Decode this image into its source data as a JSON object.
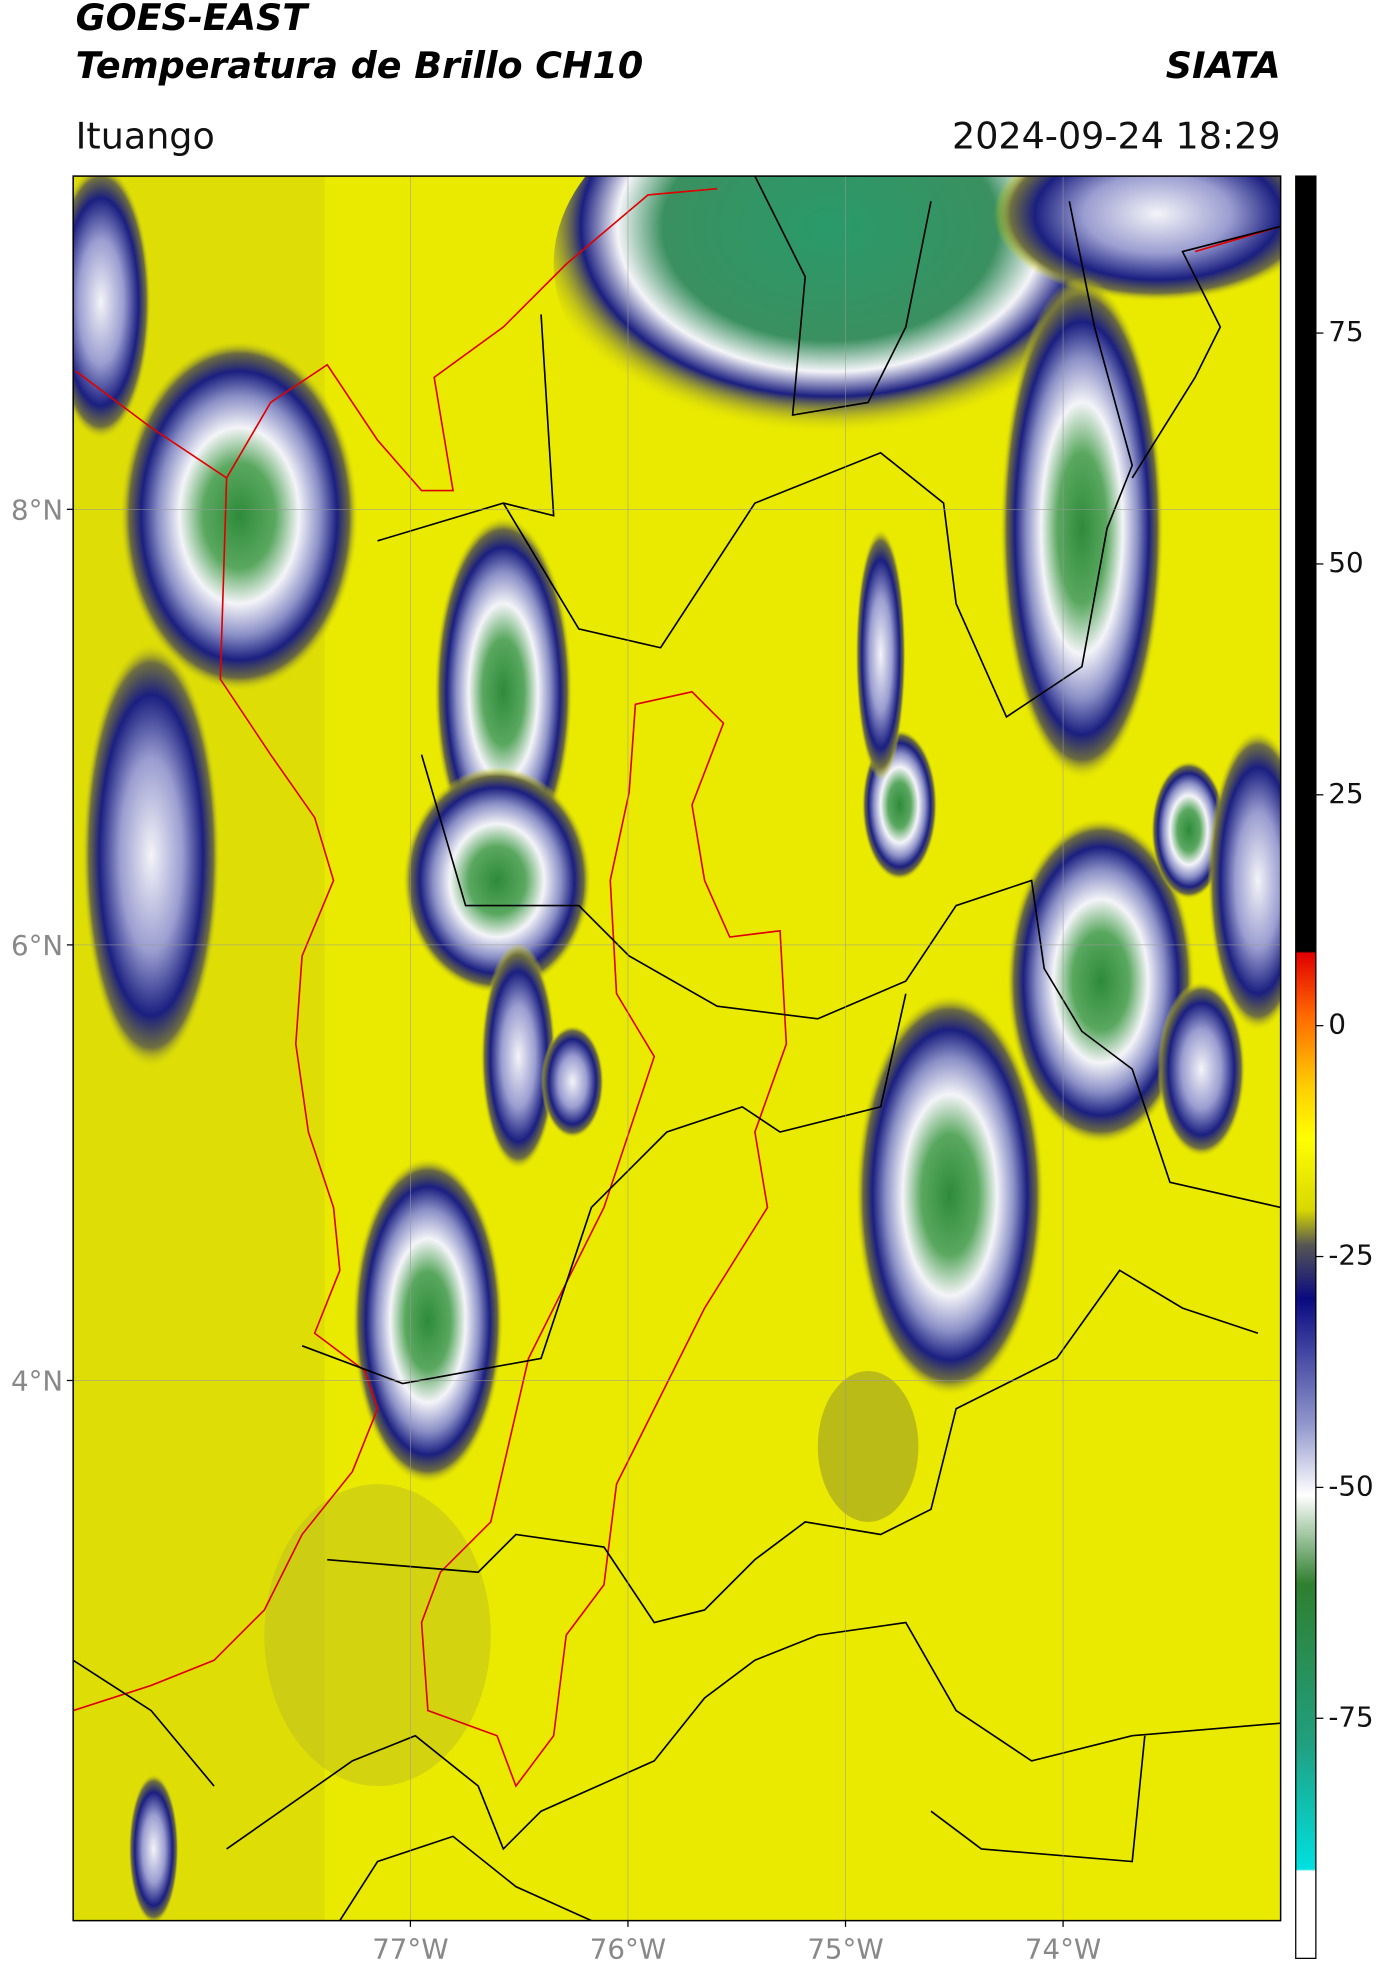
{
  "header": {
    "title": "GOES-EAST",
    "subtitle": "Temperatura de Brillo CH10",
    "source": "SIATA",
    "location": "Ituango",
    "datetime": "2024-09-24 18:29"
  },
  "map": {
    "xlim": [
      -78.55,
      -73.0
    ],
    "ylim": [
      1.52,
      9.53
    ],
    "xticks": [
      {
        "value": -77,
        "label": "77°W"
      },
      {
        "value": -76,
        "label": "76°W"
      },
      {
        "value": -75,
        "label": "75°W"
      },
      {
        "value": -74,
        "label": "74°W"
      }
    ],
    "yticks": [
      {
        "value": 8,
        "label": "8°N"
      },
      {
        "value": 6,
        "label": "6°N"
      },
      {
        "value": 4,
        "label": "4°N"
      }
    ],
    "grid": true
  },
  "colorbar": {
    "ylim": [
      -101,
      92
    ],
    "yticks": [
      75,
      50,
      25,
      0,
      -25,
      -50,
      -75
    ]
  }
}
